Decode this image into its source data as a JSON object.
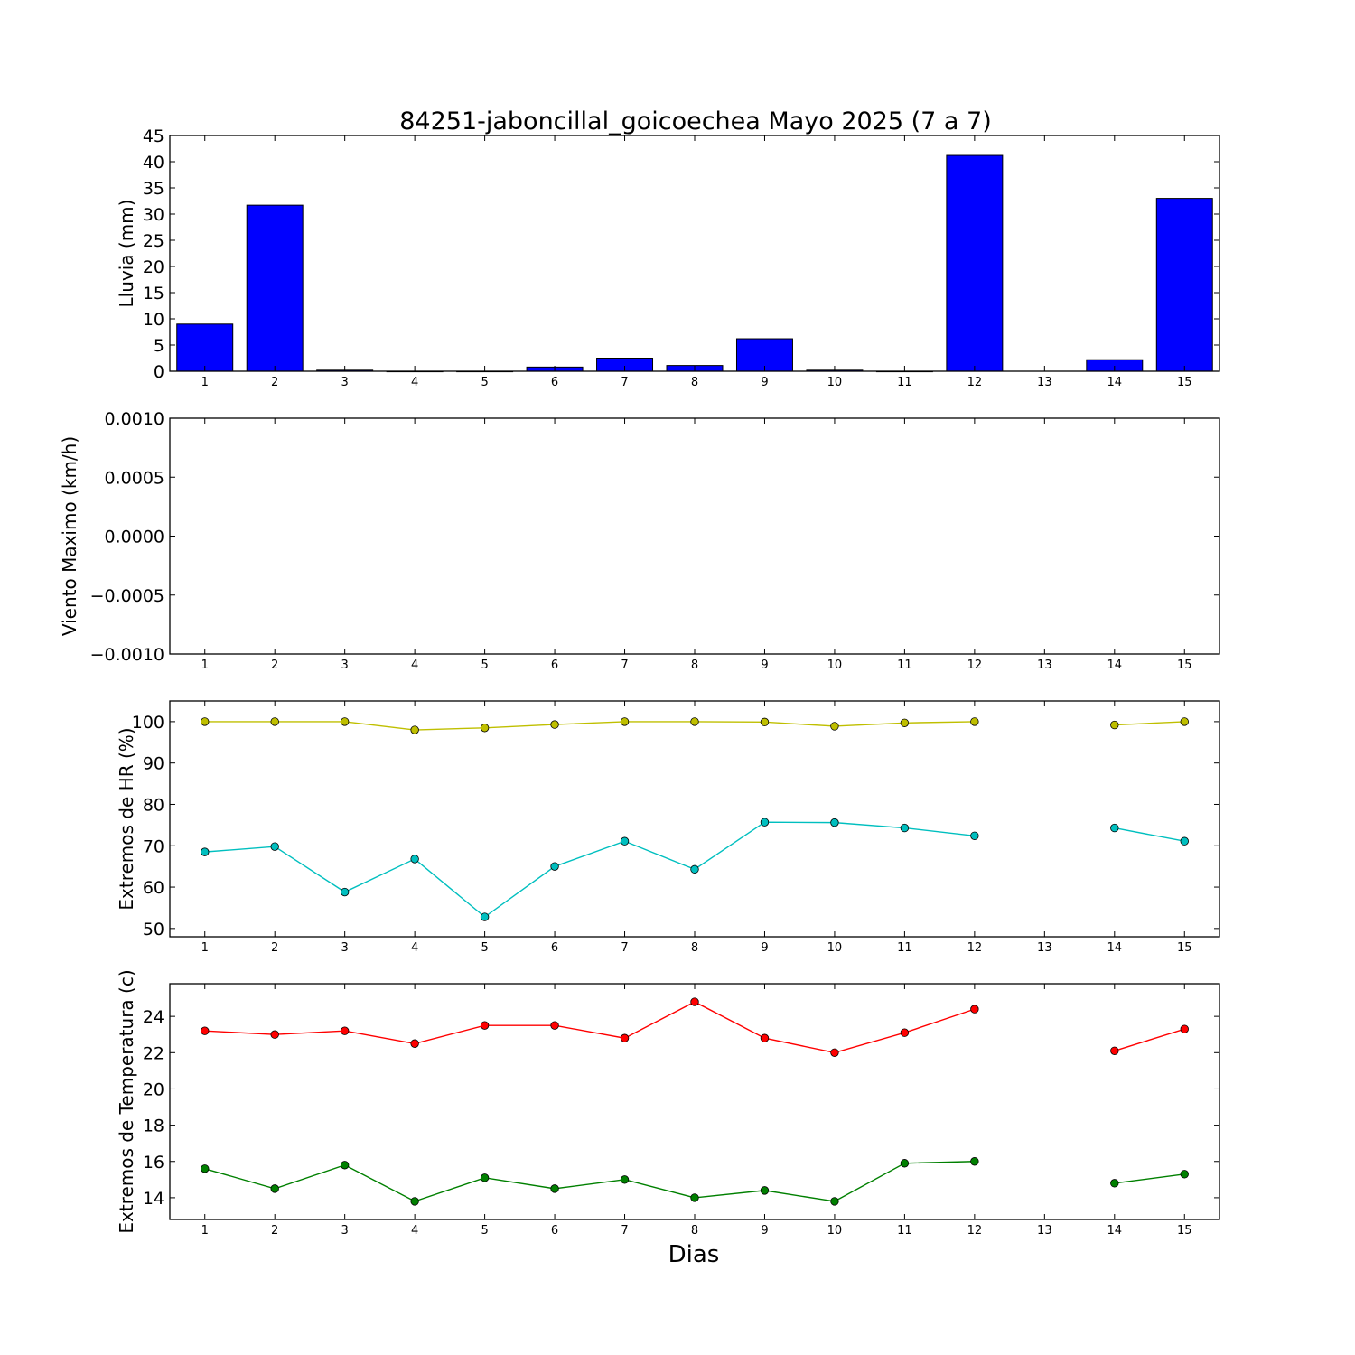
{
  "chart_data": {
    "title": "84251-jaboncillal_goicoechea Mayo 2025  (7 a 7)",
    "xlabel": "Dias",
    "days": [
      1,
      2,
      3,
      4,
      5,
      6,
      7,
      8,
      9,
      10,
      11,
      12,
      13,
      14,
      15
    ],
    "panels": [
      {
        "id": "lluvia",
        "type": "bar",
        "ylabel": "Lluvia (mm)",
        "ylim": [
          0,
          45
        ],
        "yticks": [
          "0",
          "5",
          "10",
          "15",
          "20",
          "25",
          "30",
          "35",
          "40",
          "45"
        ],
        "series": [
          {
            "values": [
              9.0,
              31.7,
              0.2,
              0.0,
              0.0,
              0.8,
              2.5,
              1.1,
              6.2,
              0.2,
              0.0,
              41.2,
              null,
              2.2,
              33.0
            ],
            "color": "#0000ff"
          }
        ]
      },
      {
        "id": "viento",
        "type": "line",
        "ylabel": "Viento Maximo (km/h)",
        "ylim": [
          -0.001,
          0.001
        ],
        "yticks": [
          "−0.0010",
          "−0.0005",
          "0.0000",
          "0.0005",
          "0.0010"
        ],
        "series": []
      },
      {
        "id": "hr",
        "type": "line",
        "ylabel": "Extremos de HR (%)",
        "ylim": [
          48,
          105
        ],
        "yticks": [
          "50",
          "60",
          "70",
          "80",
          "90",
          "100"
        ],
        "series": [
          {
            "values": [
              100,
              100,
              100,
              98,
              98.5,
              99.3,
              100,
              100,
              99.9,
              98.9,
              99.7,
              100,
              null,
              99.2,
              100
            ],
            "color": "#bfbf00"
          },
          {
            "values": [
              68.5,
              69.8,
              58.8,
              66.8,
              52.8,
              65.0,
              71.1,
              64.3,
              75.7,
              75.6,
              74.3,
              72.4,
              null,
              74.3,
              71.1
            ],
            "color": "#00bfbf"
          }
        ]
      },
      {
        "id": "temp",
        "type": "line",
        "ylabel": "Extremos de Temperatura (c)",
        "ylim": [
          12.8,
          25.8
        ],
        "yticks": [
          "14",
          "16",
          "18",
          "20",
          "22",
          "24"
        ],
        "series": [
          {
            "values": [
              23.2,
              23.0,
              23.2,
              22.5,
              23.5,
              23.5,
              22.8,
              24.8,
              22.8,
              22.0,
              23.1,
              24.4,
              null,
              22.1,
              23.3
            ],
            "color": "#ff0000"
          },
          {
            "values": [
              15.6,
              14.5,
              15.8,
              13.8,
              15.1,
              14.5,
              15.0,
              14.0,
              14.4,
              13.8,
              15.9,
              16.0,
              null,
              14.8,
              15.3
            ],
            "color": "#008000"
          }
        ]
      }
    ]
  }
}
